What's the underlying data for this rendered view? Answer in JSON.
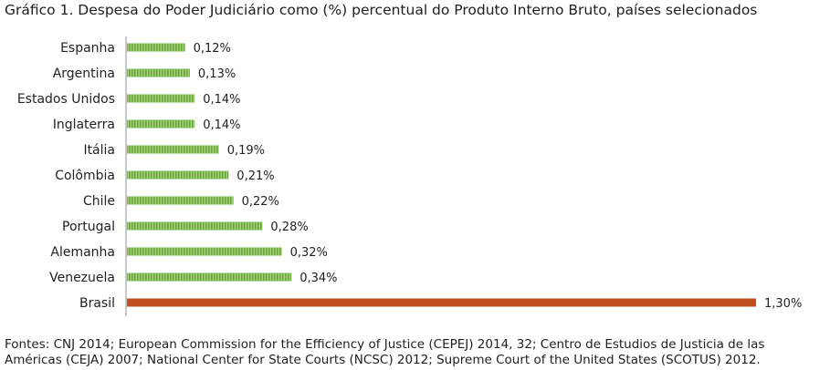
{
  "chart_data": {
    "type": "bar",
    "orientation": "horizontal",
    "title": "Gráfico 1. Despesa do Poder Judiciário como (%) percentual do Produto Interno Bruto, países selecionados",
    "categories": [
      "Espanha",
      "Argentina",
      "Estados Unidos",
      "Inglaterra",
      "Itália",
      "Colômbia",
      "Chile",
      "Portugal",
      "Alemanha",
      "Venezuela",
      "Brasil"
    ],
    "values": [
      0.12,
      0.13,
      0.14,
      0.14,
      0.19,
      0.21,
      0.22,
      0.28,
      0.32,
      0.34,
      1.3
    ],
    "value_labels": [
      "0,12%",
      "0,13%",
      "0,14%",
      "0,14%",
      "0,19%",
      "0,21%",
      "0,22%",
      "0,28%",
      "0,32%",
      "0,34%",
      "1,30%"
    ],
    "xlim": [
      0,
      1.3
    ],
    "grid": false,
    "colors": {
      "default": "#7ab648",
      "highlight": "#c0501f"
    },
    "highlight_category": "Brasil"
  },
  "footer": {
    "line1": "Fontes: CNJ 2014; European Commission for the Efficiency of Justice (CEPEJ) 2014, 32; Centro de Estudios de Justicia de las",
    "line2": "Américas (CEJA) 2007; National Center for State Courts (NCSC) 2012; Supreme Court of the United States (SCOTUS) 2012."
  }
}
